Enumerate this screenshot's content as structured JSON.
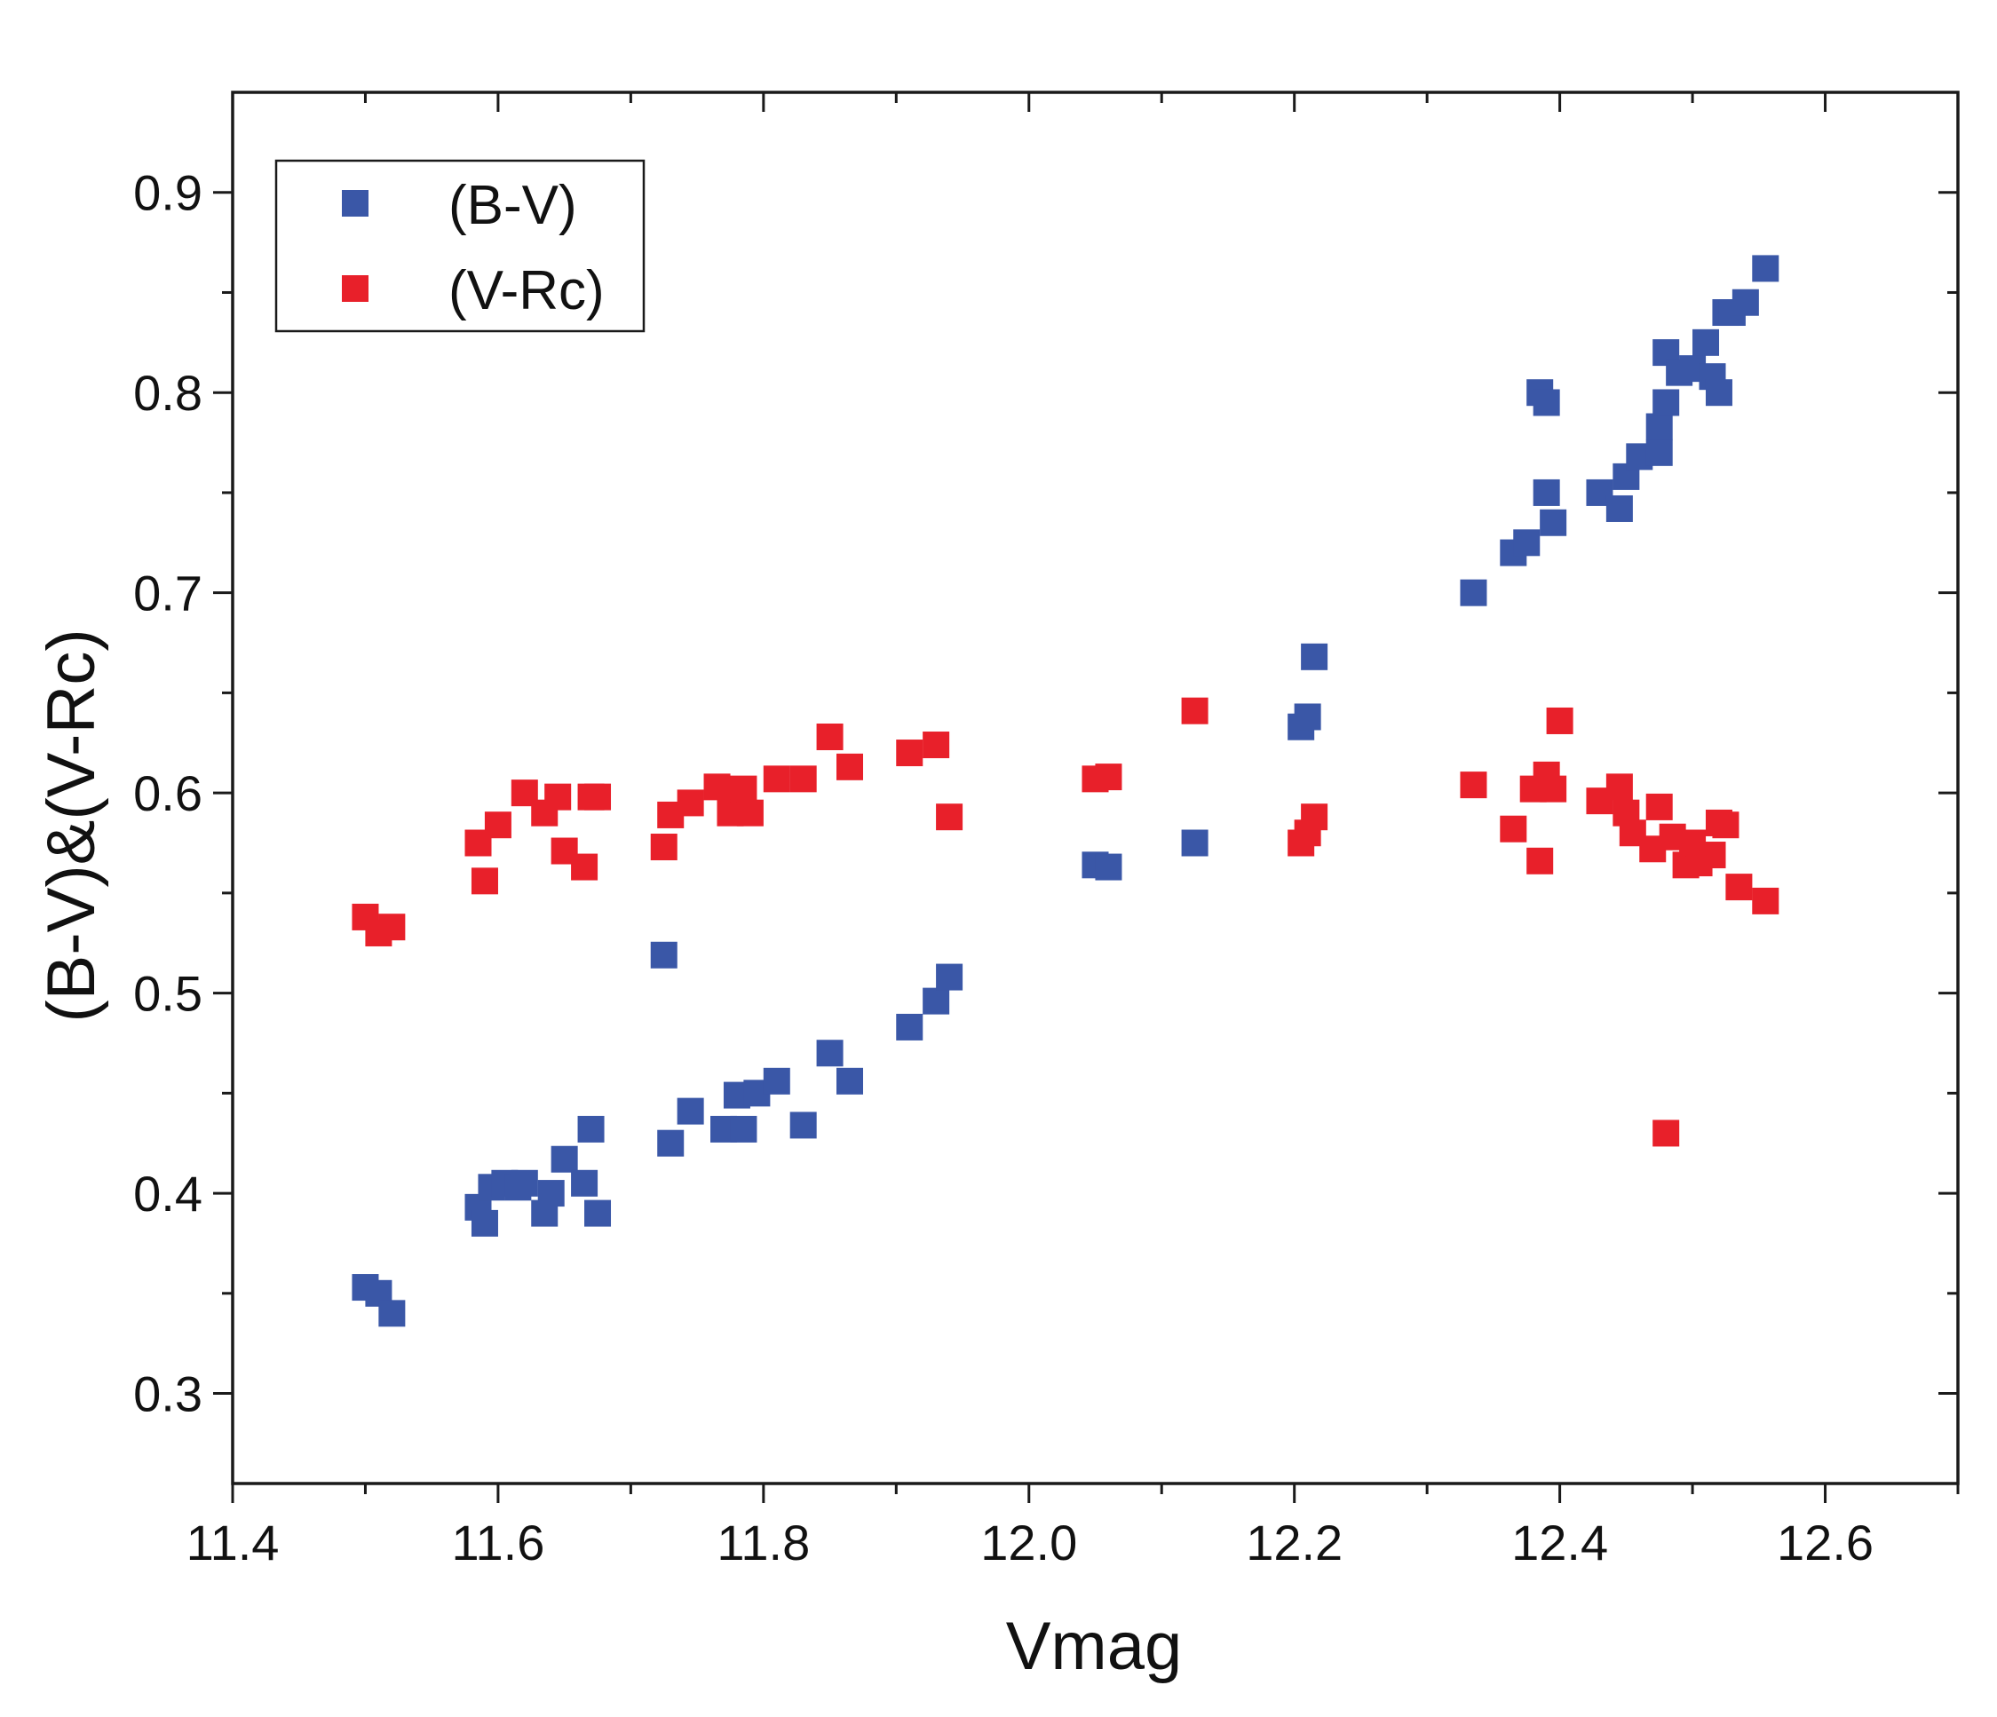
{
  "chart_data": {
    "type": "scatter",
    "title": "",
    "xlabel": "Vmag",
    "ylabel": "(B-V)&(V-Rc)",
    "xlim": [
      11.4,
      12.7
    ],
    "ylim": [
      0.255,
      0.95
    ],
    "xticks": [
      11.4,
      11.6,
      11.8,
      12.0,
      12.2,
      12.4,
      12.6
    ],
    "xtick_labels": [
      "11.4",
      "11.6",
      "11.8",
      "12.0",
      "12.2",
      "12.4",
      "12.6"
    ],
    "yticks": [
      0.3,
      0.4,
      0.5,
      0.6,
      0.7,
      0.8,
      0.9
    ],
    "ytick_labels": [
      "0.3",
      "0.4",
      "0.5",
      "0.6",
      "0.7",
      "0.8",
      "0.9"
    ],
    "grid": false,
    "legend_position": "top-left",
    "series": [
      {
        "name": "(B-V)",
        "color": "#3a57a7",
        "x": [
          11.5,
          11.51,
          11.52,
          11.585,
          11.59,
          11.595,
          11.605,
          11.615,
          11.62,
          11.635,
          11.64,
          11.65,
          11.665,
          11.67,
          11.675,
          11.725,
          11.73,
          11.745,
          11.77,
          11.78,
          11.785,
          11.795,
          11.81,
          11.83,
          11.85,
          11.865,
          11.91,
          11.93,
          11.94,
          12.05,
          12.06,
          12.125,
          12.205,
          12.21,
          12.215,
          12.335,
          12.365,
          12.375,
          12.385,
          12.39,
          12.39,
          12.395,
          12.43,
          12.445,
          12.45,
          12.46,
          12.475,
          12.475,
          12.48,
          12.48,
          12.49,
          12.5,
          12.51,
          12.515,
          12.52,
          12.525,
          12.53,
          12.54,
          12.555
        ],
        "y": [
          0.353,
          0.35,
          0.34,
          0.393,
          0.385,
          0.403,
          0.405,
          0.403,
          0.405,
          0.39,
          0.4,
          0.417,
          0.405,
          0.432,
          0.39,
          0.519,
          0.425,
          0.441,
          0.432,
          0.449,
          0.432,
          0.45,
          0.456,
          0.434,
          0.47,
          0.456,
          0.483,
          0.496,
          0.508,
          0.564,
          0.563,
          0.575,
          0.633,
          0.638,
          0.668,
          0.7,
          0.72,
          0.725,
          0.8,
          0.795,
          0.75,
          0.735,
          0.75,
          0.742,
          0.758,
          0.768,
          0.77,
          0.783,
          0.795,
          0.82,
          0.81,
          0.812,
          0.825,
          0.808,
          0.8,
          0.84,
          0.84,
          0.845,
          0.862
        ]
      },
      {
        "name": "(V-Rc)",
        "color": "#e8202a",
        "x": [
          11.5,
          11.51,
          11.52,
          11.585,
          11.59,
          11.6,
          11.62,
          11.635,
          11.645,
          11.65,
          11.665,
          11.67,
          11.675,
          11.725,
          11.73,
          11.745,
          11.765,
          11.775,
          11.785,
          11.79,
          11.81,
          11.83,
          11.85,
          11.865,
          11.91,
          11.93,
          11.94,
          12.05,
          12.06,
          12.125,
          12.205,
          12.21,
          12.215,
          12.335,
          12.365,
          12.38,
          12.385,
          12.39,
          12.395,
          12.4,
          12.43,
          12.445,
          12.45,
          12.455,
          12.47,
          12.475,
          12.48,
          12.485,
          12.495,
          12.5,
          12.505,
          12.515,
          12.52,
          12.525,
          12.535,
          12.555
        ],
        "y": [
          0.538,
          0.53,
          0.533,
          0.575,
          0.556,
          0.584,
          0.6,
          0.59,
          0.598,
          0.571,
          0.563,
          0.598,
          0.598,
          0.573,
          0.589,
          0.595,
          0.603,
          0.59,
          0.602,
          0.59,
          0.607,
          0.607,
          0.628,
          0.613,
          0.62,
          0.624,
          0.588,
          0.607,
          0.608,
          0.641,
          0.575,
          0.58,
          0.588,
          0.604,
          0.582,
          0.602,
          0.566,
          0.609,
          0.602,
          0.636,
          0.596,
          0.603,
          0.59,
          0.58,
          0.572,
          0.593,
          0.43,
          0.578,
          0.564,
          0.575,
          0.565,
          0.569,
          0.585,
          0.584,
          0.553,
          0.546
        ]
      }
    ]
  }
}
